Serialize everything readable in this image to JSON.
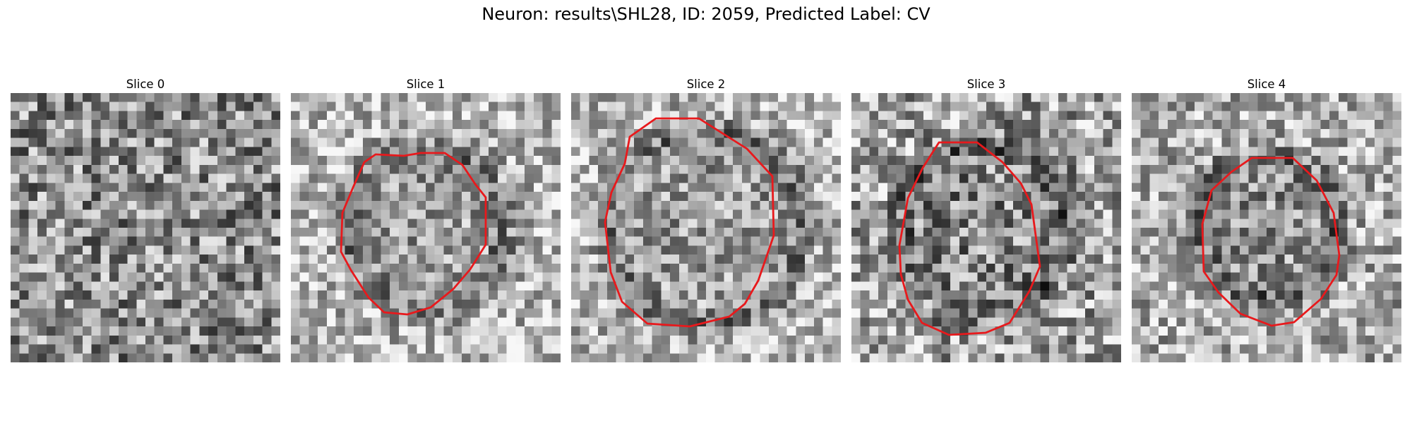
{
  "figure": {
    "title": "Neuron: results\\SHL28, ID: 2059, Predicted Label: CV"
  },
  "panels": [
    {
      "title": "Slice 0",
      "has_contour": false,
      "image": "grayscale-noise-patch"
    },
    {
      "title": "Slice 1",
      "has_contour": true,
      "image": "grayscale-noise-patch"
    },
    {
      "title": "Slice 2",
      "has_contour": true,
      "image": "grayscale-noise-patch"
    },
    {
      "title": "Slice 3",
      "has_contour": true,
      "image": "grayscale-noise-patch"
    },
    {
      "title": "Slice 4",
      "has_contour": true,
      "image": "grayscale-noise-patch"
    }
  ],
  "colors": {
    "contour": "#e8191c",
    "background": "#ffffff"
  }
}
